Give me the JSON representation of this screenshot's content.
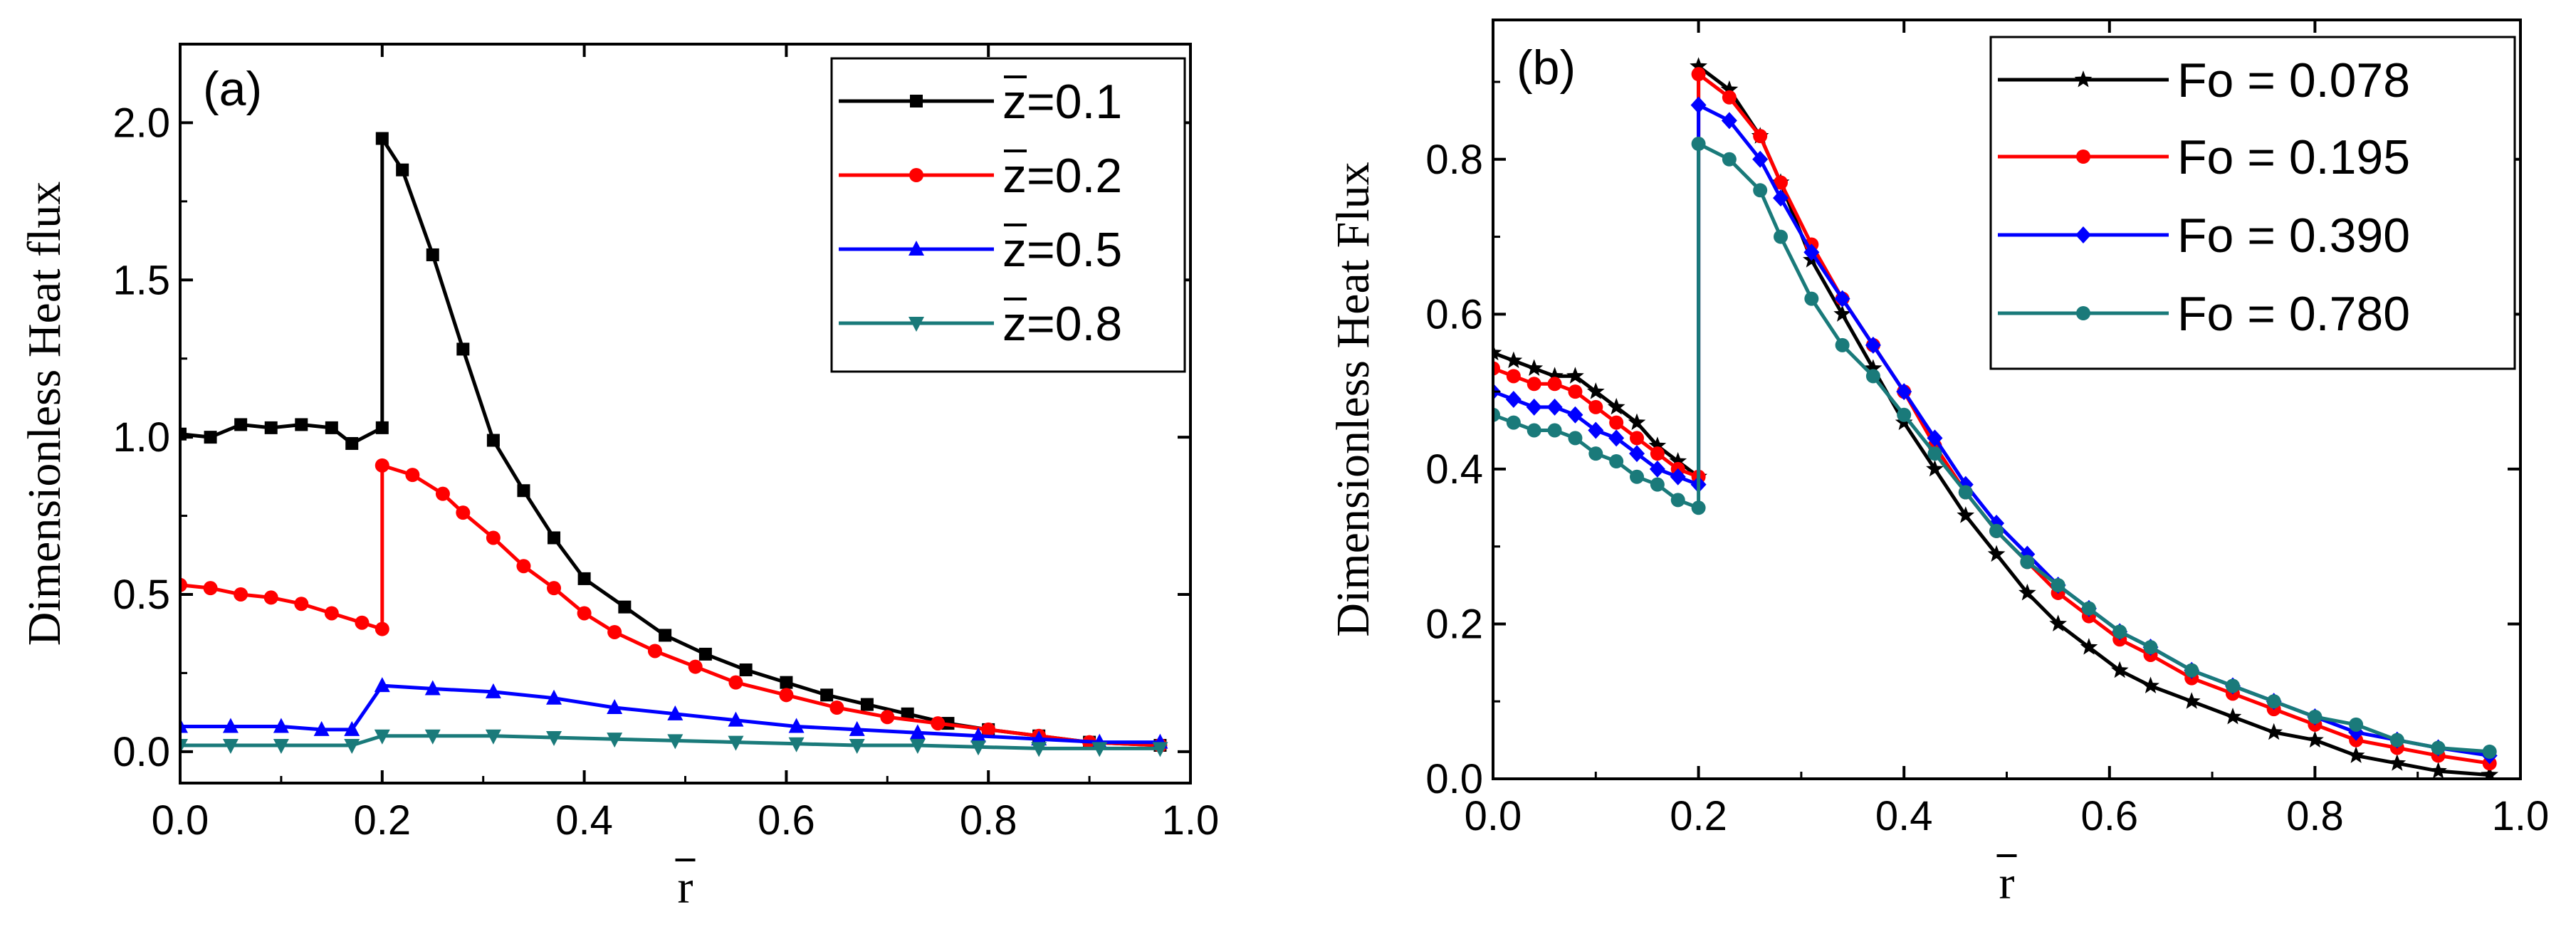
{
  "chart_data": [
    {
      "type": "line",
      "panel_label": "(a)",
      "xlabel": "r",
      "ylabel": "Dimensionless Heat flux",
      "xlim": [
        0.0,
        1.0
      ],
      "ylim": [
        -0.1,
        2.25
      ],
      "xticks": [
        0.0,
        0.2,
        0.4,
        0.6,
        0.8,
        1.0
      ],
      "xtick_labels": [
        "0.0",
        "0.2",
        "0.4",
        "0.6",
        "0.8",
        "1.0"
      ],
      "yticks": [
        0.0,
        0.5,
        1.0,
        1.5,
        2.0
      ],
      "ytick_labels": [
        "0.0",
        "0.5",
        "1.0",
        "1.5",
        "2.0"
      ],
      "legend_position": "top-right",
      "series": [
        {
          "name": "z=0.1",
          "legend_prefix": "z",
          "legend_suffix": "=0.1",
          "color": "#000000",
          "marker": "square",
          "x": [
            0.0,
            0.03,
            0.06,
            0.09,
            0.12,
            0.15,
            0.17,
            0.2,
            0.2,
            0.22,
            0.25,
            0.28,
            0.31,
            0.34,
            0.37,
            0.4,
            0.44,
            0.48,
            0.52,
            0.56,
            0.6,
            0.64,
            0.68,
            0.72,
            0.76,
            0.8,
            0.85,
            0.9,
            0.97
          ],
          "y": [
            1.01,
            1.0,
            1.04,
            1.03,
            1.04,
            1.03,
            0.98,
            1.03,
            1.95,
            1.85,
            1.58,
            1.28,
            0.99,
            0.83,
            0.68,
            0.55,
            0.46,
            0.37,
            0.31,
            0.26,
            0.22,
            0.18,
            0.15,
            0.12,
            0.09,
            0.07,
            0.05,
            0.03,
            0.02
          ]
        },
        {
          "name": "z=0.2",
          "legend_prefix": "z",
          "legend_suffix": "=0.2",
          "color": "#ff0000",
          "marker": "circle",
          "x": [
            0.0,
            0.03,
            0.06,
            0.09,
            0.12,
            0.15,
            0.18,
            0.2,
            0.2,
            0.23,
            0.26,
            0.28,
            0.31,
            0.34,
            0.37,
            0.4,
            0.43,
            0.47,
            0.51,
            0.55,
            0.6,
            0.65,
            0.7,
            0.75,
            0.8,
            0.85,
            0.9,
            0.97
          ],
          "y": [
            0.53,
            0.52,
            0.5,
            0.49,
            0.47,
            0.44,
            0.41,
            0.39,
            0.91,
            0.88,
            0.82,
            0.76,
            0.68,
            0.59,
            0.52,
            0.44,
            0.38,
            0.32,
            0.27,
            0.22,
            0.18,
            0.14,
            0.11,
            0.09,
            0.07,
            0.05,
            0.03,
            0.02
          ]
        },
        {
          "name": "z=0.5",
          "legend_prefix": "z",
          "legend_suffix": "=0.5",
          "color": "#0000ff",
          "marker": "triangle-up",
          "x": [
            0.0,
            0.05,
            0.1,
            0.14,
            0.17,
            0.2,
            0.25,
            0.31,
            0.37,
            0.43,
            0.49,
            0.55,
            0.61,
            0.67,
            0.73,
            0.79,
            0.85,
            0.91,
            0.97
          ],
          "y": [
            0.08,
            0.08,
            0.08,
            0.07,
            0.07,
            0.21,
            0.2,
            0.19,
            0.17,
            0.14,
            0.12,
            0.1,
            0.08,
            0.07,
            0.06,
            0.05,
            0.04,
            0.03,
            0.03
          ]
        },
        {
          "name": "z=0.8",
          "legend_prefix": "z",
          "legend_suffix": "=0.8",
          "color": "#1a7a7a",
          "marker": "triangle-down",
          "x": [
            0.0,
            0.05,
            0.1,
            0.17,
            0.2,
            0.25,
            0.31,
            0.37,
            0.43,
            0.49,
            0.55,
            0.61,
            0.67,
            0.73,
            0.79,
            0.85,
            0.91,
            0.97
          ],
          "y": [
            0.02,
            0.02,
            0.02,
            0.02,
            0.05,
            0.05,
            0.05,
            0.045,
            0.04,
            0.035,
            0.03,
            0.025,
            0.02,
            0.02,
            0.015,
            0.01,
            0.01,
            0.01
          ]
        }
      ]
    },
    {
      "type": "line",
      "panel_label": "(b)",
      "xlabel": "r",
      "ylabel": "Dimensionless Heat Flux",
      "xlim": [
        0.0,
        1.0
      ],
      "ylim": [
        0.0,
        0.98
      ],
      "xticks": [
        0.0,
        0.2,
        0.4,
        0.6,
        0.8,
        1.0
      ],
      "xtick_labels": [
        "0.0",
        "0.2",
        "0.4",
        "0.6",
        "0.8",
        "1.0"
      ],
      "yticks": [
        0.0,
        0.2,
        0.4,
        0.6,
        0.8
      ],
      "ytick_labels": [
        "0.0",
        "0.2",
        "0.4",
        "0.6",
        "0.8"
      ],
      "legend_position": "top-right",
      "series": [
        {
          "name": "Fo = 0.078",
          "color": "#000000",
          "marker": "star",
          "x": [
            0.0,
            0.02,
            0.04,
            0.06,
            0.08,
            0.1,
            0.12,
            0.14,
            0.16,
            0.18,
            0.2,
            0.2,
            0.23,
            0.26,
            0.28,
            0.31,
            0.34,
            0.37,
            0.4,
            0.43,
            0.46,
            0.49,
            0.52,
            0.55,
            0.58,
            0.61,
            0.64,
            0.68,
            0.72,
            0.76,
            0.8,
            0.84,
            0.88,
            0.92,
            0.97
          ],
          "y": [
            0.55,
            0.54,
            0.53,
            0.52,
            0.52,
            0.5,
            0.48,
            0.46,
            0.43,
            0.41,
            0.39,
            0.92,
            0.89,
            0.83,
            0.77,
            0.67,
            0.6,
            0.53,
            0.46,
            0.4,
            0.34,
            0.29,
            0.24,
            0.2,
            0.17,
            0.14,
            0.12,
            0.1,
            0.08,
            0.06,
            0.05,
            0.03,
            0.02,
            0.01,
            0.005
          ]
        },
        {
          "name": "Fo = 0.195",
          "color": "#ff0000",
          "marker": "circle",
          "x": [
            0.0,
            0.02,
            0.04,
            0.06,
            0.08,
            0.1,
            0.12,
            0.14,
            0.16,
            0.18,
            0.2,
            0.2,
            0.23,
            0.26,
            0.28,
            0.31,
            0.34,
            0.37,
            0.4,
            0.43,
            0.46,
            0.49,
            0.52,
            0.55,
            0.58,
            0.61,
            0.64,
            0.68,
            0.72,
            0.76,
            0.8,
            0.84,
            0.88,
            0.92,
            0.97
          ],
          "y": [
            0.53,
            0.52,
            0.51,
            0.51,
            0.5,
            0.48,
            0.46,
            0.44,
            0.42,
            0.4,
            0.39,
            0.91,
            0.88,
            0.83,
            0.77,
            0.69,
            0.62,
            0.56,
            0.5,
            0.43,
            0.37,
            0.32,
            0.28,
            0.24,
            0.21,
            0.18,
            0.16,
            0.13,
            0.11,
            0.09,
            0.07,
            0.05,
            0.04,
            0.03,
            0.02
          ]
        },
        {
          "name": "Fo = 0.390",
          "color": "#0000ff",
          "marker": "diamond",
          "x": [
            0.0,
            0.02,
            0.04,
            0.06,
            0.08,
            0.1,
            0.12,
            0.14,
            0.16,
            0.18,
            0.2,
            0.2,
            0.23,
            0.26,
            0.28,
            0.31,
            0.34,
            0.37,
            0.4,
            0.43,
            0.46,
            0.49,
            0.52,
            0.55,
            0.58,
            0.61,
            0.64,
            0.68,
            0.72,
            0.76,
            0.8,
            0.84,
            0.88,
            0.92,
            0.97
          ],
          "y": [
            0.5,
            0.49,
            0.48,
            0.48,
            0.47,
            0.45,
            0.44,
            0.42,
            0.4,
            0.39,
            0.38,
            0.87,
            0.85,
            0.8,
            0.75,
            0.68,
            0.62,
            0.56,
            0.5,
            0.44,
            0.38,
            0.33,
            0.29,
            0.25,
            0.22,
            0.19,
            0.17,
            0.14,
            0.12,
            0.1,
            0.08,
            0.06,
            0.05,
            0.04,
            0.03
          ]
        },
        {
          "name": "Fo = 0.780",
          "color": "#1a7a7a",
          "marker": "circle",
          "x": [
            0.0,
            0.02,
            0.04,
            0.06,
            0.08,
            0.1,
            0.12,
            0.14,
            0.16,
            0.18,
            0.2,
            0.2,
            0.23,
            0.26,
            0.28,
            0.31,
            0.34,
            0.37,
            0.4,
            0.43,
            0.46,
            0.49,
            0.52,
            0.55,
            0.58,
            0.61,
            0.64,
            0.68,
            0.72,
            0.76,
            0.8,
            0.84,
            0.88,
            0.92,
            0.97
          ],
          "y": [
            0.47,
            0.46,
            0.45,
            0.45,
            0.44,
            0.42,
            0.41,
            0.39,
            0.38,
            0.36,
            0.35,
            0.82,
            0.8,
            0.76,
            0.7,
            0.62,
            0.56,
            0.52,
            0.47,
            0.42,
            0.37,
            0.32,
            0.28,
            0.25,
            0.22,
            0.19,
            0.17,
            0.14,
            0.12,
            0.1,
            0.08,
            0.07,
            0.05,
            0.04,
            0.035
          ]
        }
      ]
    }
  ]
}
